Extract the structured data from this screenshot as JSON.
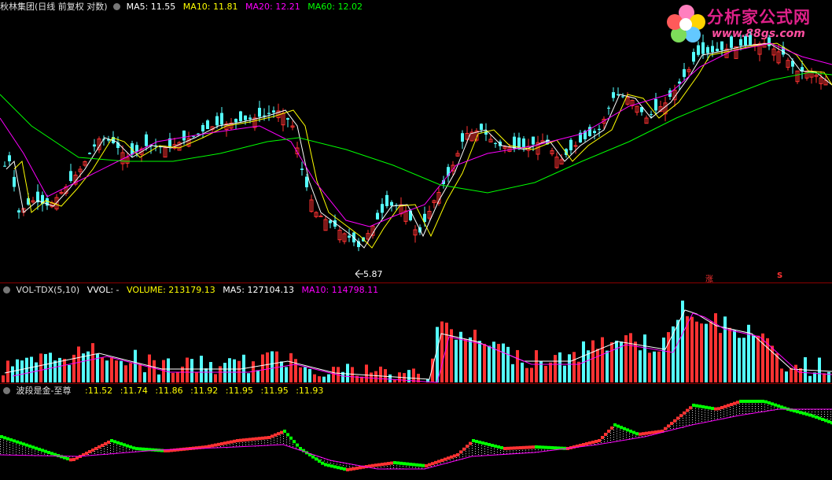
{
  "main_panel": {
    "title": "秋林集团(日线 前复权 对数)",
    "ma5": "MA5: 11.55",
    "ma10": "MA10: 11.81",
    "ma20": "MA20: 12.21",
    "ma60": "MA60: 12.02",
    "low_label": "5.87",
    "marker_zhang": "涨",
    "marker_s": "S"
  },
  "vol_panel": {
    "title": "VOL-TDX(5,10)",
    "vvol": "VVOL: -",
    "volume": "VOLUME: 213179.13",
    "ma5": "MA5: 127104.13",
    "ma10": "MA10: 114798.11"
  },
  "wave_panel": {
    "title": "波段是金-至尊",
    "values": [
      ":11.52",
      ":11.74",
      ":11.86",
      ":11.92",
      ":11.95",
      ":11.95",
      ":11.93"
    ]
  },
  "logo": {
    "text": "分析家公式网",
    "url": "www.88gs.com"
  },
  "colors": {
    "up": "#ff3232",
    "down": "#54ffff",
    "ma5": "#ffffff",
    "ma10": "#ffff00",
    "ma20": "#ff00ff",
    "ma60": "#00ff00",
    "separator": "#8b0000"
  }
}
